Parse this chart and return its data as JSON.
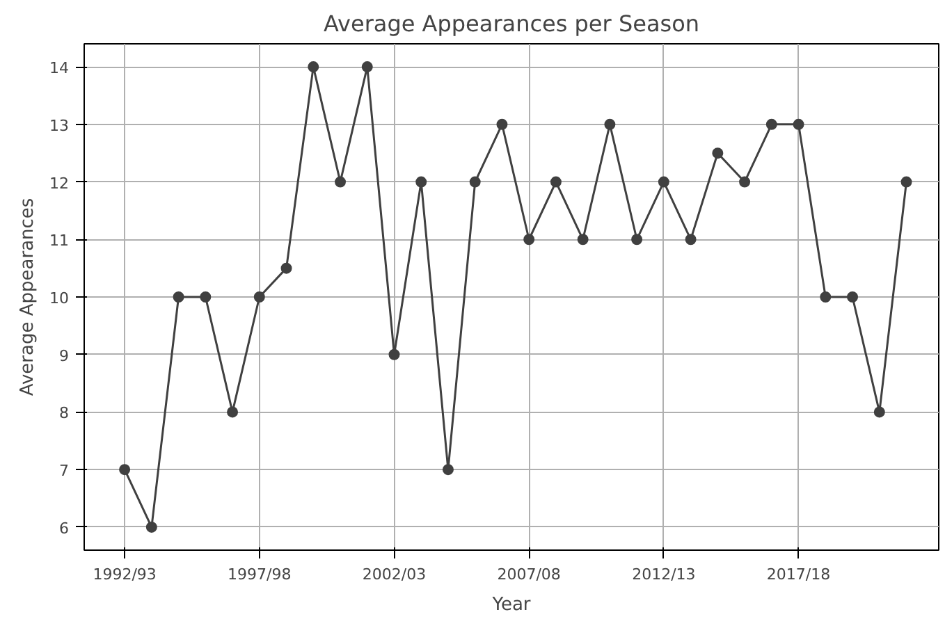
{
  "chart_data": {
    "type": "line",
    "title": "Average Appearances per Season",
    "xlabel": "Year",
    "ylabel": "Average Appearances",
    "categories": [
      "1992/93",
      null,
      null,
      null,
      null,
      "1997/98",
      null,
      null,
      null,
      null,
      "2002/03",
      null,
      null,
      null,
      null,
      "2007/08",
      null,
      null,
      null,
      null,
      "2012/13",
      null,
      null,
      null,
      null,
      "2017/18",
      null,
      null,
      null,
      null
    ],
    "series": [
      {
        "color": "#404040",
        "values": [
          7,
          6,
          10,
          10,
          8,
          10,
          10.5,
          14,
          12,
          14,
          9,
          12,
          7,
          12,
          13,
          11,
          12,
          11,
          13,
          11,
          12,
          11,
          12.5,
          12,
          13,
          13,
          10,
          10,
          8,
          12
        ]
      }
    ],
    "ylim": [
      5.6,
      14.4
    ],
    "yticks": [
      6,
      7,
      8,
      9,
      10,
      11,
      12,
      13,
      14
    ],
    "grid": true,
    "marker": "circle",
    "line_style": "solid"
  }
}
